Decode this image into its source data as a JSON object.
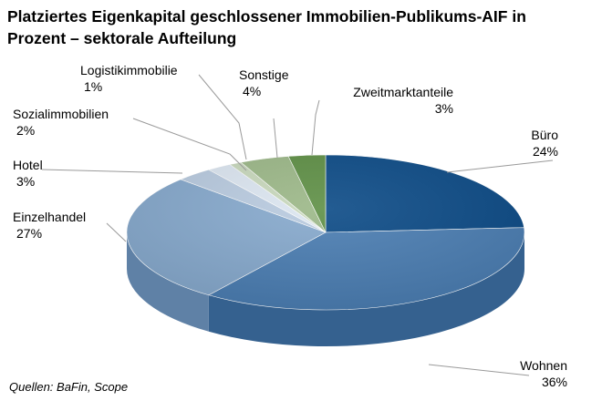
{
  "title_lines": [
    "Platziertes Eigenkapital geschlossener Immobilien-Publikums-AIF in",
    "Prozent – sektorale Aufteilung"
  ],
  "source": "Quellen: BaFin, Scope",
  "chart_data": {
    "type": "pie",
    "title": "Platziertes Eigenkapital geschlossener Immobilien-Publikums-AIF in Prozent – sektorale Aufteilung",
    "unit": "%",
    "style": "3d-tilted",
    "categories": [
      "Büro",
      "Wohnen",
      "Einzelhandel",
      "Hotel",
      "Sozialimmobilien",
      "Logistikimmobilie",
      "Sonstige",
      "Zweitmarktanteile"
    ],
    "values": [
      24,
      36,
      27,
      3,
      2,
      1,
      4,
      3
    ],
    "value_labels": [
      "24%",
      "36%",
      "27%",
      "3%",
      "2%",
      "1%",
      "4%",
      "3%"
    ],
    "colors": [
      "#0b4a86",
      "#4a7db2",
      "#86a9cd",
      "#b9cbe0",
      "#dce6f1",
      "#c8d8bc",
      "#9cb888",
      "#5e8f45"
    ],
    "side_colors": [
      "#083863",
      "#35618f",
      "#5f81a6",
      "#8c9fb7",
      "#aab4c0",
      "#9aa88f",
      "#728a60",
      "#426530"
    ]
  }
}
